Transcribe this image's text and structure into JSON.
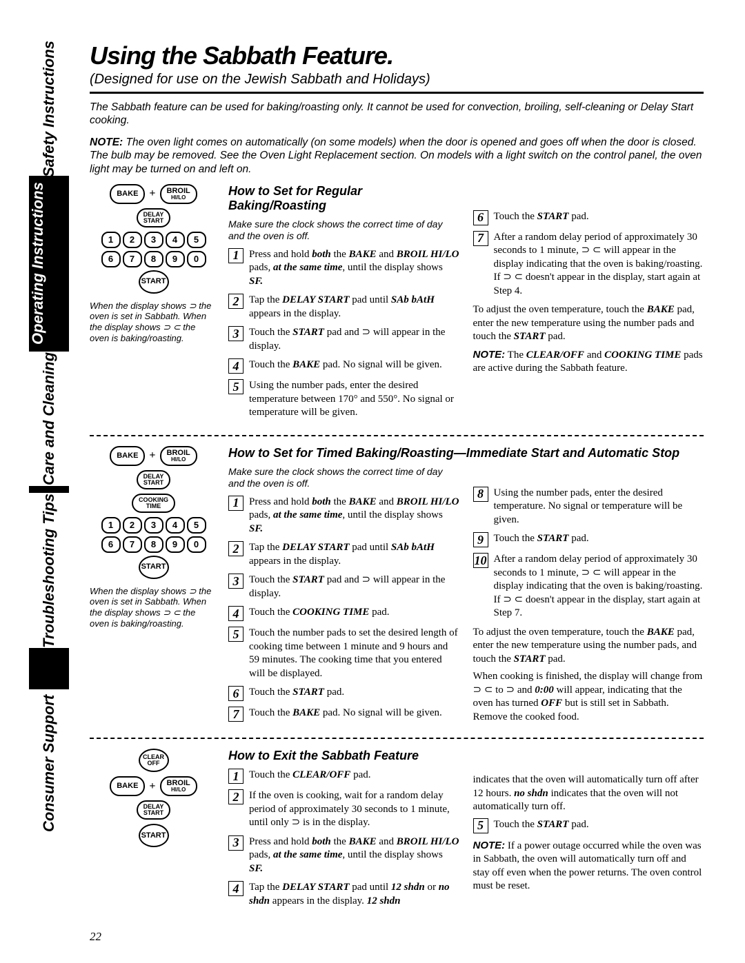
{
  "page_number": "22",
  "tabs": [
    "Safety Instructions",
    "Operating Instructions",
    "Care and Cleaning",
    "Troubleshooting Tips",
    "Consumer Support"
  ],
  "active_tab_index": 1,
  "title": "Using the Sabbath Feature.",
  "subtitle": "(Designed for use on the Jewish Sabbath and Holidays)",
  "intro1": "The Sabbath feature can be used for baking/roasting only. It cannot be used for convection, broiling, self-cleaning or Delay Start cooking.",
  "intro2_label": "NOTE:",
  "intro2": "The oven light comes on automatically (on some models) when the door is opened and goes off when the door is closed. The bulb may be removed. See the Oven Light Replacement section. On models with a light switch on the control panel, the oven light may be turned on and left on.",
  "diagram_caption": "When the display shows ⊃ the oven is set in Sabbath. When the display shows ⊃ ⊂ the oven is baking/roasting.",
  "pads": {
    "bake": "BAKE",
    "broil": "BROIL",
    "broil_sub": "HI/LO",
    "delay_start": "DELAY\nSTART",
    "cooking_time": "COOKING\nTIME",
    "start": "START",
    "clear_off": "CLEAR\nOFF",
    "nums1": [
      "1",
      "2",
      "3",
      "4",
      "5"
    ],
    "nums2": [
      "6",
      "7",
      "8",
      "9",
      "0"
    ]
  },
  "sec1": {
    "title": "How to Set for Regular Baking/Roasting",
    "lead": "Make sure the clock shows the correct time of day and the oven is off.",
    "left": [
      "Press and hold <b><i>both</i></b> the <b><i>BAKE</i></b> and <b><i>BROIL HI/LO</i></b> pads, <b><i>at the same time</i></b>, until the display shows <b><i>SF.</i></b>",
      "Tap the <b><i>DELAY START</i></b> pad until <b><i>SAb bAtH</i></b> appears in the display.",
      "Touch the <b><i>START</i></b> pad and ⊃ will appear in the display.",
      "Touch the <b><i>BAKE</i></b> pad. No signal will be given.",
      "Using the number pads, enter the desired temperature between 170° and 550°. No signal or temperature will be given."
    ],
    "right": [
      "Touch the <b><i>START</i></b> pad.",
      "After a random delay period of approximately 30 seconds to 1 minute, ⊃ ⊂ will appear in the display indicating that the oven is baking/roasting. If ⊃ ⊂ doesn't appear in the display, start again at Step 4."
    ],
    "adjust": "To adjust the oven temperature, touch the <b><i>BAKE</i></b> pad, enter the new temperature using the number pads and touch the <b><i>START</i></b> pad.",
    "note": "The <b><i>CLEAR/OFF</i></b> and <b><i>COOKING TIME</i></b> pads are active during the Sabbath feature."
  },
  "sec2": {
    "title": "How to Set for Timed Baking/Roasting—Immediate Start and Automatic Stop",
    "lead": "Make sure the clock shows the correct time of day and the oven is off.",
    "left": [
      "Press and hold <b><i>both</i></b> the <b><i>BAKE</i></b> and <b><i>BROIL HI/LO</i></b> pads, <b><i>at the same time</i></b>, until the display shows <b><i>SF.</i></b>",
      "Tap the <b><i>DELAY START</i></b> pad until <b><i>SAb bAtH</i></b> appears in the display.",
      "Touch the <b><i>START</i></b> pad and ⊃ will appear in the display.",
      "Touch the <b><i>COOKING TIME</i></b> pad.",
      "Touch the number pads to set the desired length of cooking time between 1 minute and 9 hours and 59 minutes. The cooking time that you entered will be displayed.",
      "Touch the <b><i>START</i></b> pad.",
      "Touch the <b><i>BAKE</i></b> pad. No signal will be given."
    ],
    "right": [
      "Using the number pads, enter the desired temperature. No signal or temperature will be given.",
      "Touch the <b><i>START</i></b> pad.",
      "After a random delay period of approximately 30 seconds to 1 minute, ⊃ ⊂ will appear in the display indicating that the oven is baking/roasting. If ⊃ ⊂ doesn't appear in the display, start again at Step 7."
    ],
    "adjust": "To adjust the oven temperature, touch the <b><i>BAKE</i></b> pad, enter the new temperature using the number pads, and touch the <b><i>START</i></b> pad.",
    "finish": "When cooking is finished, the display will change from ⊃ ⊂ to ⊃ and <b><i>0:00</i></b> will appear, indicating that the oven has turned <b><i>OFF</i></b> but is still set in Sabbath. Remove the cooked food."
  },
  "sec3": {
    "title": "How to Exit the Sabbath Feature",
    "left": [
      "Touch the <b><i>CLEAR/OFF</i></b> pad.",
      "If the oven is cooking, wait for a random delay period of approximately 30 seconds to 1 minute, until only ⊃ is in the display.",
      "Press and hold <b><i>both</i></b> the <b><i>BAKE</i></b> and <b><i>BROIL HI/LO</i></b> pads, <b><i>at the same time</i></b>, until the display shows <b><i>SF.</i></b>",
      "Tap the <b><i>DELAY START</i></b> pad until <b><i>12 shdn</i></b> or <b><i>no shdn</i></b> appears in the display. <b><i>12 shdn</i></b>"
    ],
    "right_cont": "indicates that the oven will automatically turn off after 12 hours. <b><i>no shdn</i></b> indicates that the oven will not automatically turn off.",
    "right": [
      "Touch the <b><i>START</i></b> pad."
    ],
    "note": "If a power outage occurred while the oven was in Sabbath, the oven will automatically turn off and stay off even when the power returns. The oven control must be reset."
  }
}
